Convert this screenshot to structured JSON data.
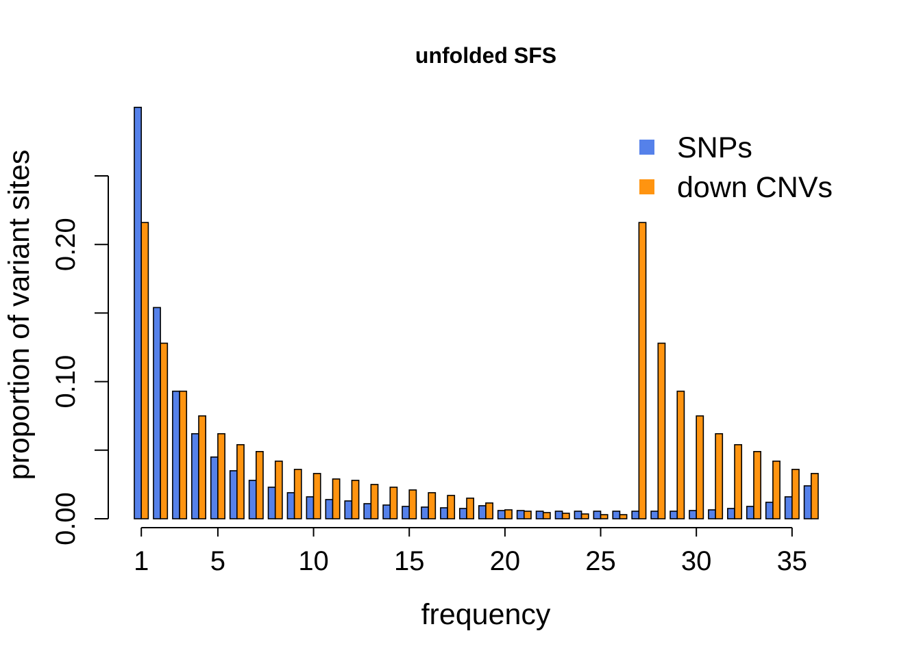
{
  "chart_data": {
    "type": "bar",
    "title": "unfolded SFS",
    "xlabel": "frequency",
    "ylabel": "proportion of variant sites",
    "x_tick_labels": [
      "1",
      "5",
      "10",
      "15",
      "20",
      "25",
      "30",
      "35"
    ],
    "x_tick_values": [
      1,
      5,
      10,
      15,
      20,
      25,
      30,
      35
    ],
    "y_tick_labels": [
      "0.00",
      "0.10",
      "0.20"
    ],
    "y_tick_values": [
      0.0,
      0.05,
      0.1,
      0.15,
      0.2,
      0.25
    ],
    "ylim": [
      0,
      0.3
    ],
    "categories": [
      1,
      2,
      3,
      4,
      5,
      6,
      7,
      8,
      9,
      10,
      11,
      12,
      13,
      14,
      15,
      16,
      17,
      18,
      19,
      20,
      21,
      22,
      23,
      24,
      25,
      26,
      27,
      28,
      29,
      30,
      31,
      32,
      33,
      34,
      35,
      36
    ],
    "series": [
      {
        "name": "SNPs",
        "color": "#5581ea",
        "values": [
          0.3,
          0.154,
          0.093,
          0.062,
          0.045,
          0.035,
          0.028,
          0.023,
          0.019,
          0.016,
          0.014,
          0.013,
          0.011,
          0.01,
          0.009,
          0.0085,
          0.008,
          0.0075,
          0.0095,
          0.006,
          0.006,
          0.0055,
          0.0055,
          0.0055,
          0.0055,
          0.0055,
          0.0055,
          0.0055,
          0.0055,
          0.006,
          0.0065,
          0.0075,
          0.009,
          0.012,
          0.016,
          0.024
        ]
      },
      {
        "name": "down CNVs",
        "color": "#ff9410",
        "values": [
          0.216,
          0.128,
          0.093,
          0.075,
          0.062,
          0.054,
          0.049,
          0.042,
          0.036,
          0.033,
          0.029,
          0.028,
          0.025,
          0.023,
          0.021,
          0.019,
          0.017,
          0.015,
          0.0115,
          0.0065,
          0.0055,
          0.0045,
          0.004,
          0.0035,
          0.003,
          0.003,
          0.216,
          0.128,
          0.093,
          0.075,
          0.062,
          0.054,
          0.049,
          0.042,
          0.036,
          0.033
        ]
      }
    ],
    "legend_position": "top-right",
    "grid": false
  }
}
